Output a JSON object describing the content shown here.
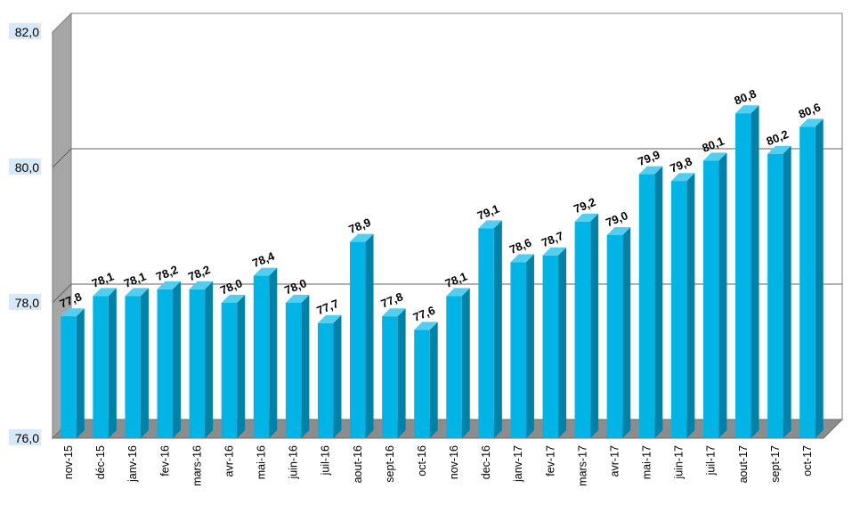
{
  "chart_data": {
    "type": "bar",
    "title": "",
    "xlabel": "",
    "ylabel": "",
    "ylim": [
      76.0,
      82.0
    ],
    "yticks": [
      "76,0",
      "78,0",
      "80,0",
      "82,0"
    ],
    "grid": true,
    "three_d": true,
    "legend": "none",
    "colors": {
      "bar_front": "#00b4e6",
      "bar_side": "#0082a8",
      "bar_top": "#52cff0",
      "wall": "#a6a6a6",
      "floor": "#8c8c8c"
    },
    "categories": [
      "nov-15",
      "déc-15",
      "janv-16",
      "fev-16",
      "mars-16",
      "avr-16",
      "mai-16",
      "juin-16",
      "juil-16",
      "aout-16",
      "sept-16",
      "oct-16",
      "nov-16",
      "dec-16",
      "janv-17",
      "fev-17",
      "mars-17",
      "avr-17",
      "mai-17",
      "juin-17",
      "juil-17",
      "aout-17",
      "sept-17",
      "oct-17"
    ],
    "values": [
      77.8,
      78.1,
      78.1,
      78.2,
      78.2,
      78.0,
      78.4,
      78.0,
      77.7,
      78.9,
      77.8,
      77.6,
      78.1,
      79.1,
      78.6,
      78.7,
      79.2,
      79.0,
      79.9,
      79.8,
      80.1,
      80.8,
      80.2,
      80.6
    ],
    "labels": [
      "77,8",
      "78,1",
      "78,1",
      "78,2",
      "78,2",
      "78,0",
      "78,4",
      "78,0",
      "77,7",
      "78,9",
      "77,8",
      "77,6",
      "78,1",
      "79,1",
      "78,6",
      "78,7",
      "79,2",
      "79,0",
      "79,9",
      "79,8",
      "80,1",
      "80,8",
      "80,2",
      "80,6"
    ]
  }
}
